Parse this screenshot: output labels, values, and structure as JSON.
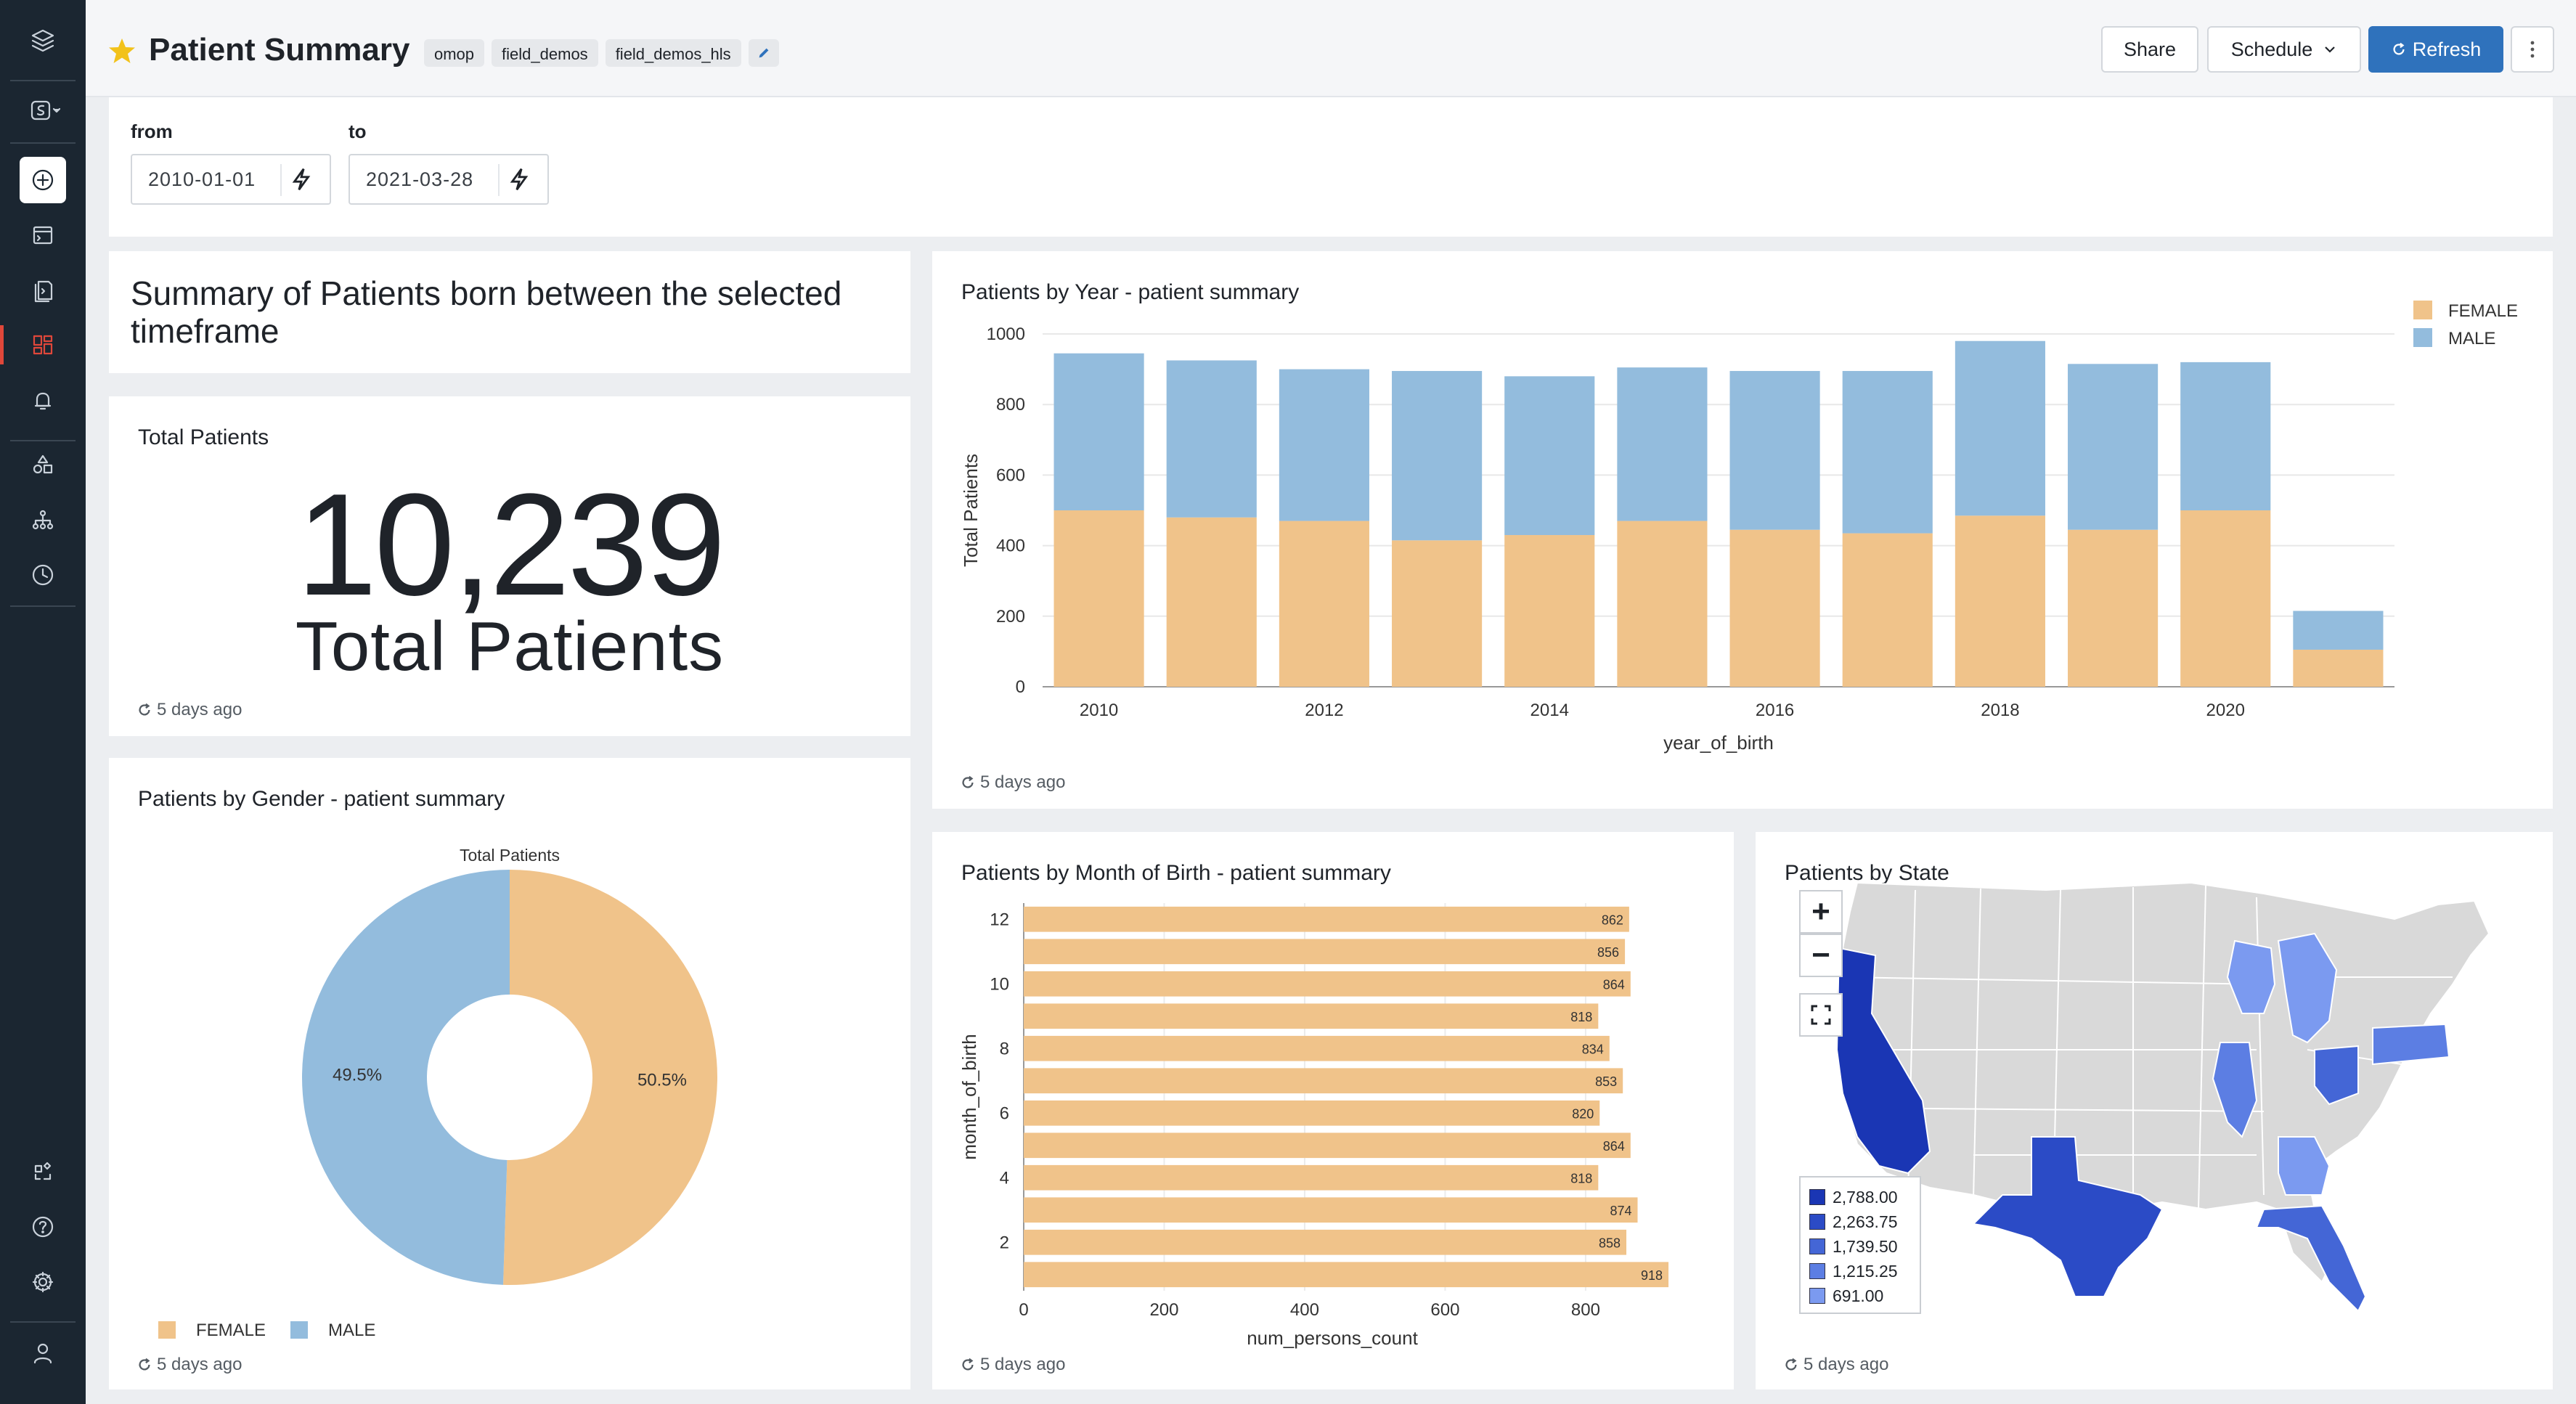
{
  "header": {
    "title": "Patient Summary",
    "tags": [
      "omop",
      "field_demos",
      "field_demos_hls"
    ],
    "share_label": "Share",
    "schedule_label": "Schedule",
    "refresh_label": "Refresh"
  },
  "filters": {
    "from_label": "from",
    "from_value": "2010-01-01",
    "to_label": "to",
    "to_value": "2021-03-28"
  },
  "panels": {
    "summary_text": "Summary of Patients born between the selected timeframe",
    "total": {
      "title": "Total Patients",
      "value": "10,239",
      "label": "Total Patients",
      "updated": "5 days ago"
    },
    "gender": {
      "title": "Patients by Gender - patient summary",
      "updated": "5 days ago"
    },
    "year": {
      "title": "Patients by Year - patient summary",
      "updated": "5 days ago"
    },
    "month": {
      "title": "Patients by Month of Birth - patient summary",
      "updated": "5 days ago"
    },
    "state": {
      "title": "Patients by State",
      "updated": "5 days ago",
      "legend": [
        "2,788.00",
        "2,263.75",
        "1,739.50",
        "1,215.25",
        "691.00"
      ]
    }
  },
  "colors": {
    "female": "#f0c38a",
    "male": "#93bcdd",
    "primary": "#2f72bc",
    "map_scale": [
      "#1a36b4",
      "#2b4bc6",
      "#4466d6",
      "#5c7ee3",
      "#7b9af0"
    ],
    "map_empty": "#d9d9d9"
  },
  "chart_data": [
    {
      "type": "pie",
      "title": "Total Patients",
      "labels": [
        "FEMALE",
        "MALE"
      ],
      "values": [
        50.5,
        49.5
      ],
      "value_labels": [
        "50.5%",
        "49.5%"
      ],
      "legend": "bottom-left"
    },
    {
      "type": "bar",
      "stacked": true,
      "xlabel": "year_of_birth",
      "ylabel": "Total Patients",
      "categories": [
        2010,
        2011,
        2012,
        2013,
        2014,
        2015,
        2016,
        2017,
        2018,
        2019,
        2020,
        2021
      ],
      "xticks": [
        2010,
        2012,
        2014,
        2016,
        2018,
        2020
      ],
      "yticks": [
        0,
        200,
        400,
        600,
        800,
        1000
      ],
      "ylim": [
        0,
        1000
      ],
      "series": [
        {
          "name": "FEMALE",
          "values": [
            500,
            480,
            470,
            415,
            430,
            470,
            445,
            435,
            485,
            445,
            500,
            105
          ]
        },
        {
          "name": "MALE",
          "values": [
            445,
            445,
            430,
            480,
            450,
            435,
            450,
            460,
            495,
            470,
            420,
            110
          ]
        }
      ],
      "legend": "top-right"
    },
    {
      "type": "bar",
      "orientation": "horizontal",
      "xlabel": "num_persons_count",
      "ylabel": "month_of_birth",
      "categories": [
        12,
        11,
        10,
        9,
        8,
        7,
        6,
        5,
        4,
        3,
        2,
        1
      ],
      "values": [
        862,
        856,
        864,
        818,
        834,
        853,
        820,
        864,
        818,
        874,
        858,
        918
      ],
      "yticks": [
        12,
        10,
        8,
        6,
        4,
        2
      ],
      "xticks": [
        0,
        200,
        400,
        600,
        800
      ],
      "xlim": [
        0,
        920
      ]
    }
  ]
}
